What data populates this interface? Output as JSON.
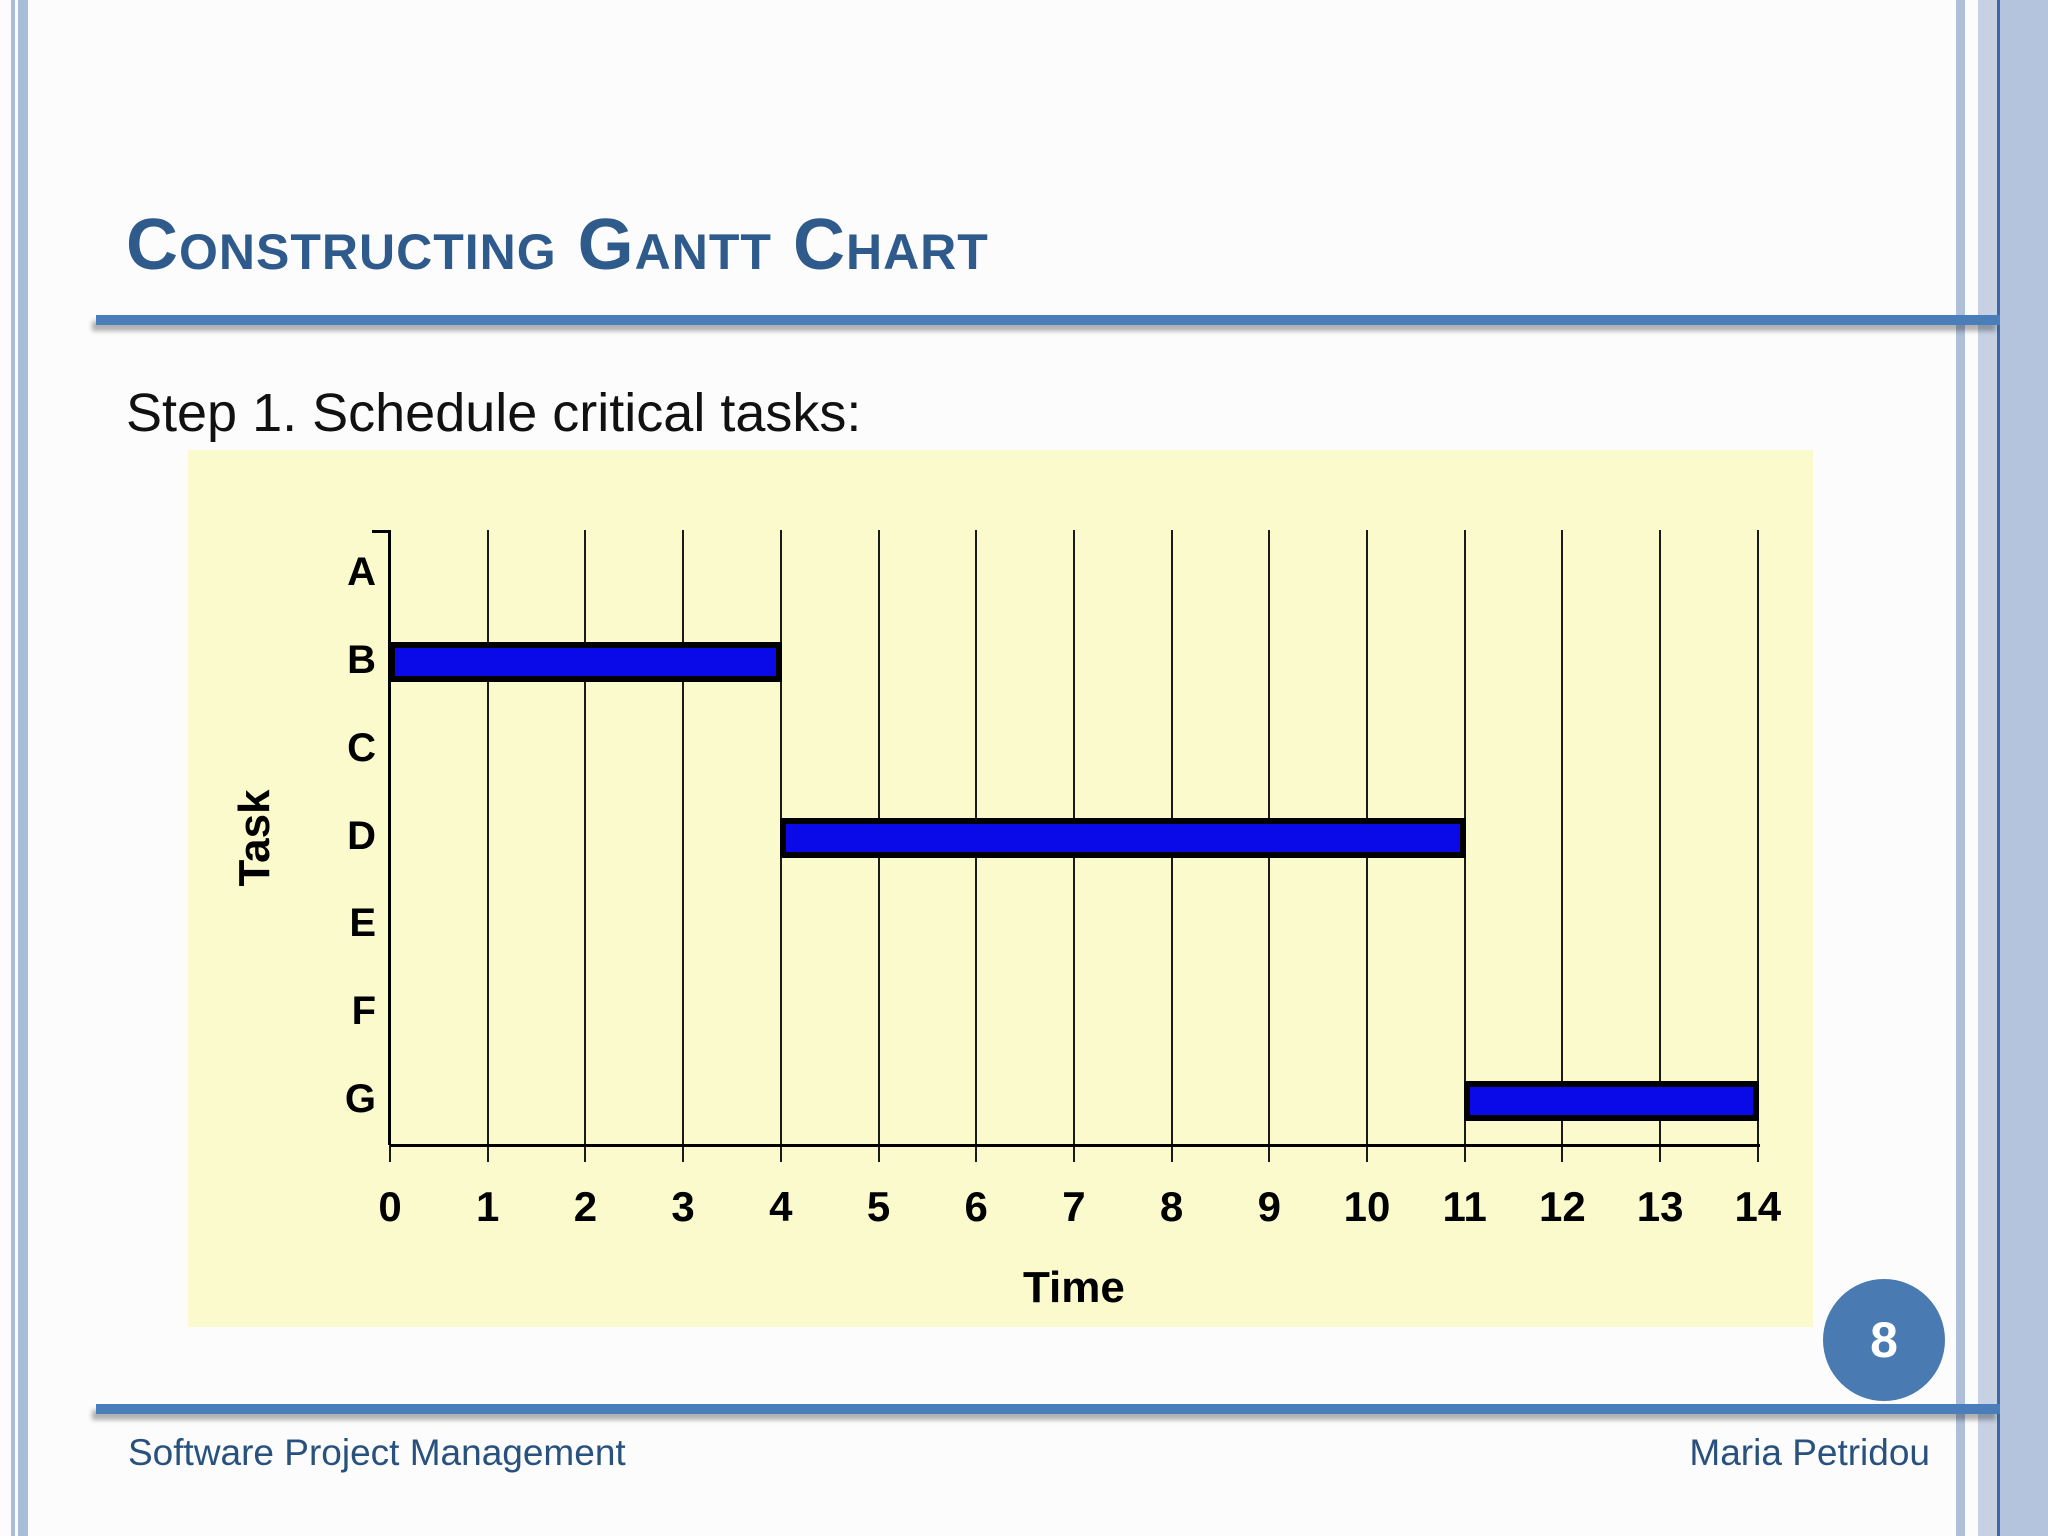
{
  "slide": {
    "title": "Constructing Gantt Chart",
    "step_heading": "Step 1. Schedule critical tasks:",
    "footer_left": "Software Project Management",
    "footer_right": "Maria Petridou",
    "page_number": "8"
  },
  "theme": {
    "title_color": "#2e5a8c",
    "rule_color": "#4a7ebb",
    "footer_text_color": "#28517e",
    "page_badge_color": "#4a7ab2",
    "border_stripe_color": "#a9bcd8",
    "border_band_light": "#c6d1e4",
    "border_band_medium": "#b5c4dd",
    "border_line_color": "#3b6aa6"
  },
  "chart_data": {
    "type": "bar",
    "variant": "gantt-horizontal",
    "title": "",
    "xlabel": "Time",
    "ylabel": "Task",
    "categories": [
      "A",
      "B",
      "C",
      "D",
      "E",
      "F",
      "G"
    ],
    "xlim": [
      0,
      14
    ],
    "x_ticks": [
      0,
      1,
      2,
      3,
      4,
      5,
      6,
      7,
      8,
      9,
      10,
      11,
      12,
      13,
      14
    ],
    "bars": [
      {
        "task": "B",
        "start": 0,
        "end": 4
      },
      {
        "task": "D",
        "start": 4,
        "end": 11
      },
      {
        "task": "G",
        "start": 11,
        "end": 14
      }
    ],
    "grid": "vertical gridlines at every time unit",
    "legend": "none",
    "colors": {
      "plot_background": "#fafacd",
      "bar_fill": "#0a0ae8",
      "bar_border": "#000000",
      "grid_line": "#1a1a1a",
      "axis_line": "#000000",
      "label_text": "#000000"
    }
  }
}
